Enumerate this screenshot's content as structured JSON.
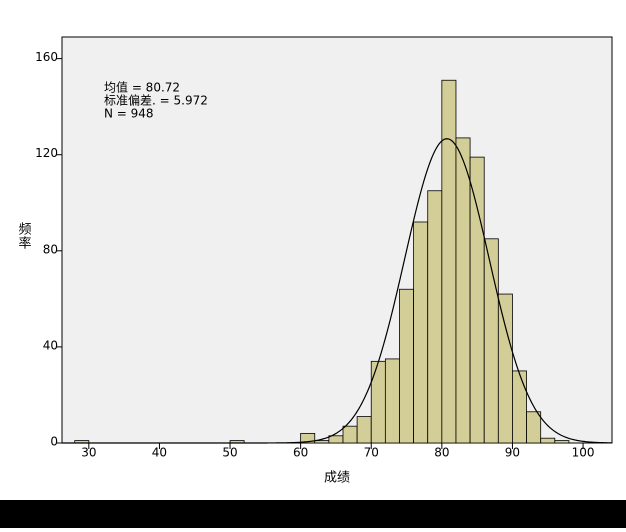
{
  "chart_data": {
    "type": "histogram",
    "xlabel": "成绩",
    "ylabel": "频率",
    "bins": [
      28,
      30,
      32,
      34,
      36,
      38,
      40,
      42,
      44,
      46,
      48,
      50,
      52,
      54,
      56,
      58,
      60,
      62,
      64,
      66,
      68,
      70,
      72,
      74,
      76,
      78,
      80,
      82,
      84,
      86,
      88,
      90,
      92,
      94,
      96,
      98
    ],
    "values": [
      1,
      0,
      0,
      0,
      0,
      0,
      0,
      0,
      0,
      0,
      0,
      1,
      0,
      0,
      0,
      0,
      4,
      1,
      3,
      7,
      11,
      34,
      35,
      64,
      92,
      105,
      151,
      127,
      119,
      85,
      62,
      30,
      13,
      2,
      1
    ],
    "color": "#d3ce97",
    "stats": [
      {
        "value": 80.72,
        "label": "均值 = 80.72"
      },
      {
        "value": 5.972,
        "label": "标准偏差. = 5.972"
      },
      {
        "value": 948,
        "label": "N = 948"
      }
    ],
    "xlim": [
      26.2,
      104.1
    ],
    "xticks": [
      30,
      40,
      50,
      60,
      70,
      80,
      90,
      100
    ],
    "ylim": [
      0,
      169
    ],
    "yticks": [
      0,
      40,
      80,
      120,
      160
    ]
  }
}
